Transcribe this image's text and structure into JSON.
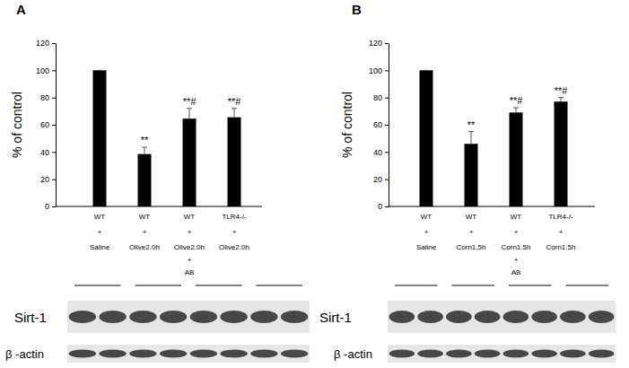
{
  "chart_data": [
    {
      "type": "bar",
      "title": "A",
      "y_label": "% of control",
      "categories": [
        [
          "WT",
          "+",
          "Saline"
        ],
        [
          "WT",
          "+",
          "Olive2.0h"
        ],
        [
          "WT",
          "+",
          "Olive2.0h",
          "+",
          "AB"
        ],
        [
          "TLR4-/-",
          "+",
          "Olive2.0h"
        ]
      ],
      "values": [
        100,
        38.5,
        64.5,
        65.5
      ],
      "errors": [
        0,
        5,
        7.5,
        6.5
      ],
      "significance": [
        null,
        "**",
        "**#",
        "**#"
      ],
      "color": "#000000",
      "ylim": [
        0,
        120
      ],
      "yticks": [
        0,
        20,
        40,
        60,
        80,
        100,
        120
      ],
      "blot_labels": [
        "Sirt-1",
        "β -actin"
      ]
    },
    {
      "type": "bar",
      "title": "B",
      "y_label": "% of control",
      "categories": [
        [
          "WT",
          "+",
          "Saline"
        ],
        [
          "WT",
          "+",
          "Corn1.5h"
        ],
        [
          "WT",
          "+",
          "Corn1.5h",
          "+",
          "AB"
        ],
        [
          "TLR4-/-",
          "+",
          "Corn1.5h"
        ]
      ],
      "values": [
        100,
        46,
        69,
        77
      ],
      "errors": [
        0,
        9,
        3.5,
        3
      ],
      "significance": [
        null,
        "**",
        "**#",
        "**#"
      ],
      "color": "#000000",
      "ylim": [
        0,
        120
      ],
      "yticks": [
        0,
        20,
        40,
        60,
        80,
        100,
        120
      ],
      "blot_labels": [
        "Sirt-1",
        "β -actin"
      ]
    }
  ]
}
